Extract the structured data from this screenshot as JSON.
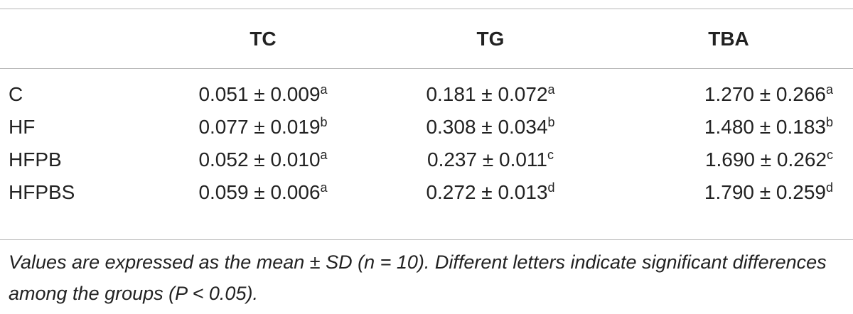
{
  "table": {
    "columns": [
      "",
      "TC",
      "TG",
      "TBA"
    ],
    "rows": [
      {
        "label": "C",
        "cells": [
          {
            "value": "0.051 ± 0.009",
            "sup": "a"
          },
          {
            "value": "0.181 ± 0.072",
            "sup": "a"
          },
          {
            "value": "1.270 ± 0.266",
            "sup": "a"
          }
        ]
      },
      {
        "label": "HF",
        "cells": [
          {
            "value": "0.077 ± 0.019",
            "sup": "b"
          },
          {
            "value": "0.308 ± 0.034",
            "sup": "b"
          },
          {
            "value": "1.480 ± 0.183",
            "sup": "b"
          }
        ]
      },
      {
        "label": "HFPB",
        "cells": [
          {
            "value": "0.052 ± 0.010",
            "sup": "a"
          },
          {
            "value": "0.237 ± 0.011",
            "sup": "c"
          },
          {
            "value": "1.690 ± 0.262",
            "sup": "c"
          }
        ]
      },
      {
        "label": "HFPBS",
        "cells": [
          {
            "value": "0.059 ± 0.006",
            "sup": "a"
          },
          {
            "value": "0.272 ± 0.013",
            "sup": "d"
          },
          {
            "value": "1.790 ± 0.259",
            "sup": "d"
          }
        ]
      }
    ]
  },
  "footnote": "Values are expressed as the mean ± SD (n = 10). Different letters indicate significant differences among the groups (P < 0.05)."
}
